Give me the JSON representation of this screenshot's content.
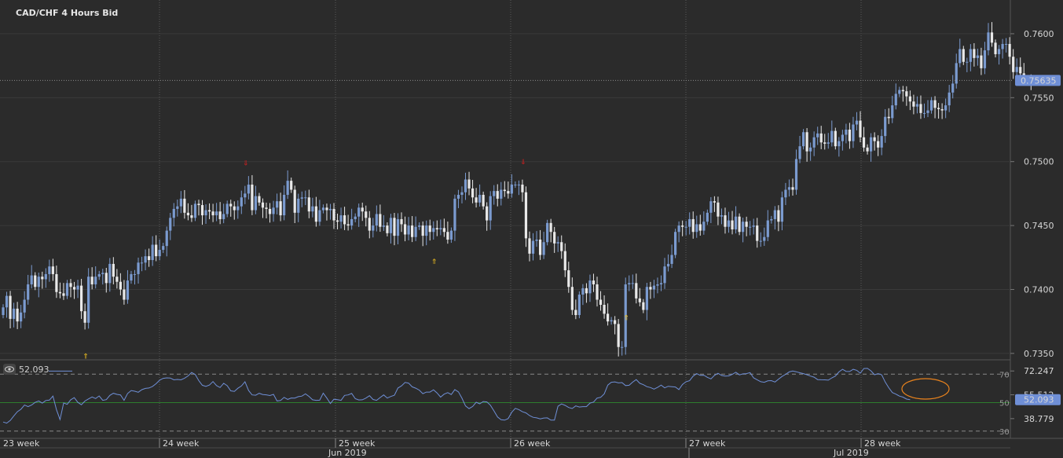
{
  "chart_title": "CAD/CHF  4 Hours Bid",
  "colors": {
    "background": "#2b2b2b",
    "bull": "#7b9bd0",
    "bear": "#e9e9e9",
    "rsi_line": "#6f8fd6",
    "level50": "#2e7d2e",
    "highlight_circle": "#e8821d",
    "price_badge": "#6f8fd6"
  },
  "chart_data": [
    {
      "type": "candlestick",
      "title": "CAD/CHF  4 Hours Bid",
      "current_price": "0.75635",
      "y_ticks": [
        "0.7600",
        "0.7550",
        "0.7500",
        "0.7450",
        "0.7400",
        "0.7350"
      ],
      "ylim": [
        0.7345,
        0.7619
      ],
      "fractal_up_at_candles": [
        68,
        146
      ],
      "fractal_down_at_candles": [
        23,
        121,
        175
      ],
      "closes": [
        0.7386,
        0.7395,
        0.7377,
        0.7385,
        0.7375,
        0.7382,
        0.7392,
        0.7404,
        0.7411,
        0.7402,
        0.741,
        0.7408,
        0.7412,
        0.7418,
        0.7412,
        0.7398,
        0.7397,
        0.7395,
        0.7405,
        0.7402,
        0.74,
        0.7403,
        0.7383,
        0.7374,
        0.741,
        0.7404,
        0.741,
        0.7412,
        0.7413,
        0.7405,
        0.742,
        0.741,
        0.7406,
        0.74,
        0.7392,
        0.7407,
        0.7412,
        0.7412,
        0.7421,
        0.7421,
        0.7426,
        0.7423,
        0.7435,
        0.7426,
        0.7431,
        0.7434,
        0.7446,
        0.7456,
        0.7463,
        0.7465,
        0.7471,
        0.746,
        0.7458,
        0.7456,
        0.7467,
        0.7466,
        0.7458,
        0.7462,
        0.7461,
        0.7458,
        0.7461,
        0.7455,
        0.7459,
        0.7467,
        0.7465,
        0.7462,
        0.7465,
        0.7472,
        0.7475,
        0.7482,
        0.7462,
        0.7473,
        0.7468,
        0.7464,
        0.7463,
        0.7459,
        0.7464,
        0.7469,
        0.7458,
        0.7474,
        0.7485,
        0.7478,
        0.746,
        0.7471,
        0.7472,
        0.7472,
        0.7461,
        0.7465,
        0.7453,
        0.7462,
        0.7464,
        0.7462,
        0.7463,
        0.7454,
        0.7453,
        0.7458,
        0.7451,
        0.745,
        0.7455,
        0.7457,
        0.7464,
        0.7461,
        0.7456,
        0.7446,
        0.745,
        0.7459,
        0.7449,
        0.745,
        0.7444,
        0.7456,
        0.7442,
        0.7455,
        0.7451,
        0.7443,
        0.745,
        0.7441,
        0.7449,
        0.745,
        0.7442,
        0.745,
        0.7445,
        0.7448,
        0.7447,
        0.7448,
        0.7445,
        0.7439,
        0.7446,
        0.7471,
        0.7474,
        0.7476,
        0.7486,
        0.7479,
        0.7472,
        0.7468,
        0.7474,
        0.7465,
        0.7454,
        0.7473,
        0.7477,
        0.7471,
        0.7478,
        0.7477,
        0.7475,
        0.7482,
        0.7482,
        0.7482,
        0.7476,
        0.744,
        0.7428,
        0.7438,
        0.7439,
        0.7427,
        0.7437,
        0.7452,
        0.7445,
        0.7436,
        0.7437,
        0.743,
        0.7415,
        0.7402,
        0.7384,
        0.738,
        0.7396,
        0.7401,
        0.7397,
        0.7407,
        0.7404,
        0.7392,
        0.7388,
        0.7381,
        0.7375,
        0.7376,
        0.7373,
        0.7355,
        0.7355,
        0.7404,
        0.7405,
        0.7405,
        0.7393,
        0.739,
        0.7384,
        0.7402,
        0.74,
        0.7403,
        0.7404,
        0.7405,
        0.7418,
        0.742,
        0.7427,
        0.7445,
        0.745,
        0.7449,
        0.7449,
        0.7455,
        0.7445,
        0.7451,
        0.7446,
        0.7453,
        0.746,
        0.7469,
        0.7468,
        0.7457,
        0.7458,
        0.7449,
        0.7454,
        0.7447,
        0.7457,
        0.7445,
        0.7453,
        0.7449,
        0.7449,
        0.745,
        0.7438,
        0.7438,
        0.7441,
        0.7454,
        0.7455,
        0.7462,
        0.7453,
        0.7472,
        0.7478,
        0.748,
        0.7478,
        0.7502,
        0.7512,
        0.7523,
        0.7508,
        0.7511,
        0.7519,
        0.7522,
        0.7515,
        0.7514,
        0.7515,
        0.7524,
        0.7512,
        0.7516,
        0.7521,
        0.7525,
        0.7516,
        0.7529,
        0.7532,
        0.7519,
        0.7511,
        0.7508,
        0.7519,
        0.7516,
        0.7511,
        0.752,
        0.7535,
        0.7534,
        0.7544,
        0.7553,
        0.7556,
        0.7555,
        0.7551,
        0.7547,
        0.7543,
        0.7545,
        0.7538,
        0.7538,
        0.754,
        0.7548,
        0.7542,
        0.7541,
        0.754,
        0.7544,
        0.7554,
        0.7561,
        0.7577,
        0.7588,
        0.7578,
        0.7578,
        0.7588,
        0.7581,
        0.7583,
        0.7573,
        0.7587,
        0.7601,
        0.7593,
        0.7584,
        0.7588,
        0.7592,
        0.7592,
        0.7582,
        0.757,
        0.7574,
        0.7569,
        0.7564,
        0.7565,
        0.7564
      ]
    },
    {
      "type": "line",
      "indicator": "RSI",
      "value_label": "52.093",
      "current_value": "52.093",
      "y_ticks": [
        "72.247",
        "55.512",
        "38.779"
      ],
      "levels": [
        30,
        50,
        70
      ],
      "level_labels": [
        "30",
        "50",
        "70"
      ],
      "ylim": [
        26,
        79
      ],
      "values": [
        36.4,
        35.6,
        37.5,
        40.7,
        43.6,
        45.3,
        48.3,
        47.2,
        48.3,
        50.2,
        51.2,
        49.7,
        51.5,
        51.8,
        54.6,
        45.0,
        38.1,
        49.8,
        48.8,
        52.0,
        53.5,
        50.2,
        48.5,
        51.1,
        52.6,
        54.0,
        52.9,
        54.7,
        51.6,
        52.1,
        55.1,
        56.6,
        55.8,
        55.4,
        51.6,
        56.4,
        58.5,
        58.0,
        57.3,
        59.1,
        60.0,
        60.3,
        61.4,
        63.3,
        65.8,
        67.1,
        67.4,
        67.3,
        66.0,
        66.3,
        66.0,
        67.2,
        68.8,
        71.2,
        69.7,
        65.5,
        62.2,
        61.4,
        62.4,
        64.8,
        62.0,
        60.6,
        63.6,
        61.9,
        58.3,
        57.9,
        60.1,
        61.7,
        64.7,
        58.5,
        55.4,
        55.2,
        56.6,
        55.7,
        55.5,
        55.0,
        55.8,
        51.2,
        51.5,
        53.7,
        52.3,
        53.3,
        53.2,
        54.2,
        54.6,
        56.2,
        54.4,
        52.0,
        51.6,
        51.7,
        56.7,
        53.2,
        49.4,
        52.4,
        52.1,
        51.6,
        55.1,
        55.4,
        56.5,
        52.8,
        51.9,
        52.0,
        53.2,
        54.9,
        52.2,
        51.6,
        53.6,
        55.4,
        53.2,
        54.3,
        55.2,
        60.3,
        61.8,
        64.2,
        63.7,
        61.1,
        60.2,
        58.8,
        56.3,
        57.4,
        57.4,
        59.0,
        56.8,
        53.9,
        56.0,
        57.0,
        55.7,
        59.2,
        57.6,
        53.1,
        47.7,
        45.8,
        47.3,
        50.3,
        49.2,
        50.8,
        50.5,
        48.2,
        44.2,
        39.9,
        38.0,
        37.7,
        38.8,
        43.3,
        46.0,
        45.1,
        43.6,
        42.8,
        40.9,
        39.7,
        39.3,
        38.6,
        39.2,
        39.3,
        37.7,
        37.7,
        47.5,
        49.1,
        48.1,
        46.6,
        45.9,
        47.7,
        46.9,
        47.2,
        47.2,
        49.7,
        50.4,
        53.2,
        53.7,
        56.2,
        62.3,
        64.3,
        64.6,
        63.9,
        64.1,
        62.0,
        62.2,
        64.4,
        66.2,
        63.6,
        62.6,
        61.2,
        60.6,
        59.5,
        60.7,
        62.3,
        60.4,
        61.5,
        61.2,
        61.0,
        59.2,
        62.8,
        64.7,
        65.4,
        68.6,
        70.4,
        69.2,
        69.3,
        67.8,
        66.7,
        69.2,
        70.6,
        69.1,
        68.6,
        68.8,
        69.9,
        71.4,
        69.5,
        70.2,
        70.4,
        71.1,
        67.4,
        66.1,
        64.7,
        64.3,
        65.3,
        65.5,
        64.5,
        66.5,
        68.4,
        69.9,
        71.6,
        72.2,
        71.7,
        71.0,
        70.4,
        69.6,
        68.7,
        67.9,
        66.2,
        66.1,
        66.0,
        65.8,
        67.4,
        68.7,
        71.6,
        73.4,
        72.0,
        71.9,
        73.4,
        72.7,
        70.7,
        74.0,
        74.1,
        72.3,
        69.6,
        70.4,
        69.6,
        64.5,
        60.5,
        57.1,
        56.0,
        54.6,
        53.9,
        52.5,
        52.1
      ]
    }
  ],
  "x_axis": {
    "week_labels": [
      "23 week",
      "24 week",
      "25 week",
      "26 week",
      "27 week",
      "28 week"
    ],
    "month_labels": [
      "Jun 2019",
      "Jul 2019"
    ]
  }
}
